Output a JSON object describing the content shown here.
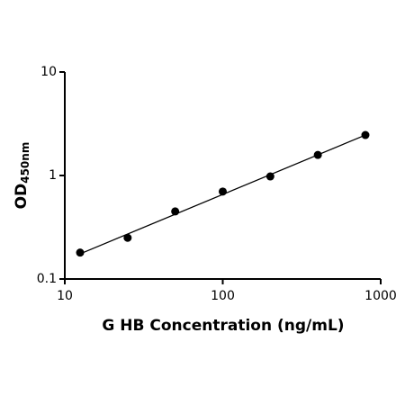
{
  "chart_data": {
    "type": "scatter",
    "x_label": "G HB Concentration (ng/mL)",
    "y_label": "OD",
    "y_label_sub": "450nm",
    "x": [
      12.5,
      25,
      50,
      100,
      200,
      400,
      800
    ],
    "y": [
      0.18,
      0.25,
      0.45,
      0.7,
      0.98,
      1.58,
      2.46
    ],
    "color": "#000000",
    "fit_line": {
      "x": [
        12.5,
        800
      ],
      "y": [
        0.175,
        2.46
      ],
      "color": "#000000"
    },
    "xscale": "log",
    "yscale": "log",
    "xlim": [
      10,
      1000
    ],
    "ylim": [
      0.1,
      10
    ],
    "xticks": [
      10,
      100,
      1000
    ],
    "yticks": [
      0.1,
      1,
      10
    ],
    "grid": false
  }
}
